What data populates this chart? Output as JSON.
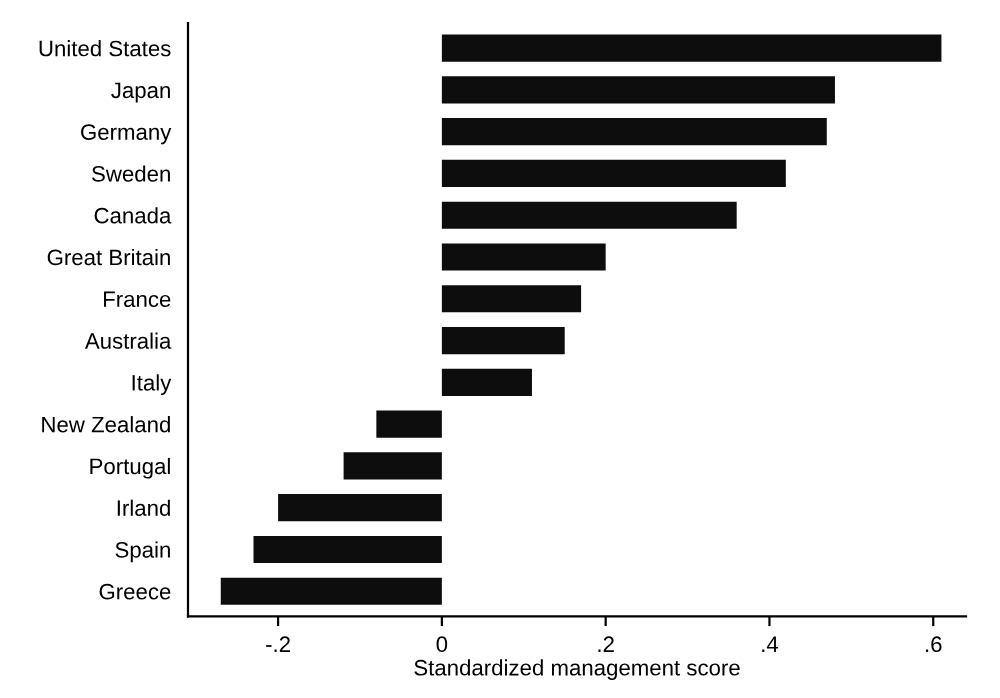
{
  "chart_data": {
    "type": "bar",
    "orientation": "horizontal",
    "xlabel": "Standardized management score",
    "categories": [
      "United States",
      "Japan",
      "Germany",
      "Sweden",
      "Canada",
      "Great Britain",
      "France",
      "Australia",
      "Italy",
      "New Zealand",
      "Portugal",
      "Irland",
      "Spain",
      "Greece"
    ],
    "values": [
      0.61,
      0.48,
      0.47,
      0.42,
      0.36,
      0.2,
      0.17,
      0.15,
      0.11,
      -0.08,
      -0.12,
      -0.2,
      -0.23,
      -0.27
    ],
    "color": "#0d0d0d",
    "xlim": [
      -0.31,
      0.64
    ],
    "xticks": [
      {
        "value": -0.2,
        "label": "-.2"
      },
      0,
      {
        "value": 0.2,
        "label": ".2"
      },
      {
        "value": 0.4,
        "label": ".4"
      },
      {
        "value": 0.6,
        "label": ".6"
      }
    ],
    "grid": false,
    "legend": false
  }
}
